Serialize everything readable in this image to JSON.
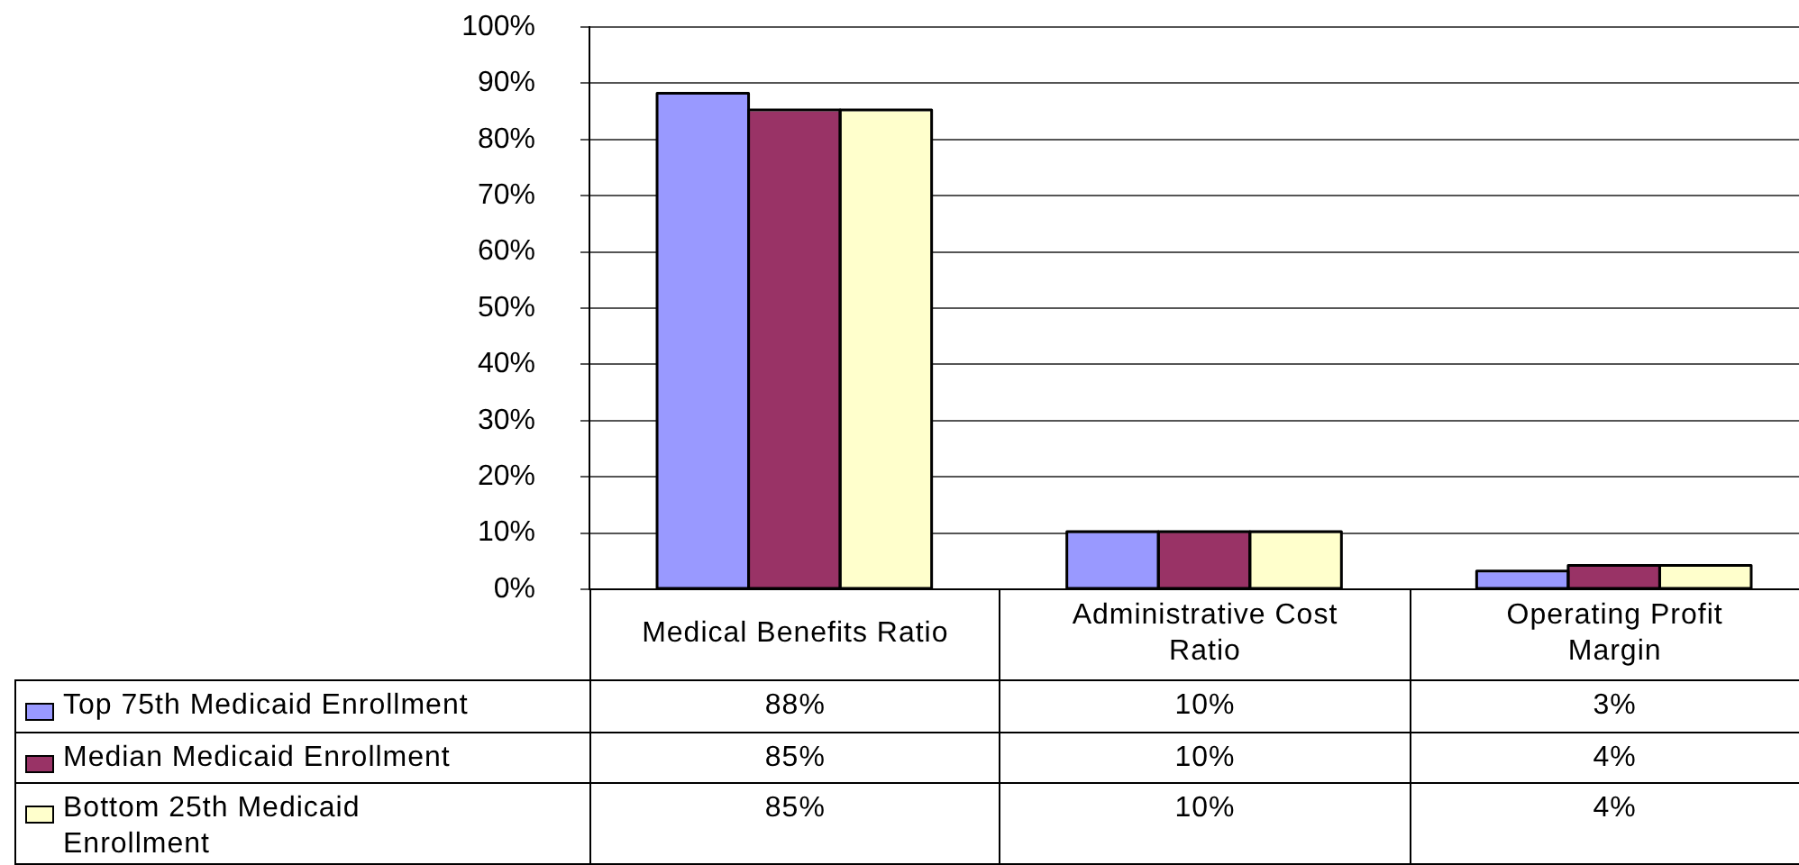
{
  "chart_data": {
    "type": "bar",
    "categories": [
      "Medical Benefits Ratio",
      "Administrative Cost Ratio",
      "Operating Profit Margin"
    ],
    "series": [
      {
        "name": "Top 75th Medicaid Enrollment",
        "color": "#9999ff",
        "values": [
          88,
          10,
          3
        ],
        "value_labels": [
          "88%",
          "10%",
          "3%"
        ]
      },
      {
        "name": "Median Medicaid Enrollment",
        "color": "#993366",
        "values": [
          85,
          10,
          4
        ],
        "value_labels": [
          "85%",
          "10%",
          "4%"
        ]
      },
      {
        "name": "Bottom 25th Medicaid Enrollment",
        "color": "#ffffcc",
        "values": [
          85,
          10,
          4
        ],
        "value_labels": [
          "85%",
          "10%",
          "4%"
        ]
      }
    ],
    "ylim": [
      0,
      100
    ],
    "yticks": [
      {
        "value": 0,
        "label": "0%"
      },
      {
        "value": 10,
        "label": "10%"
      },
      {
        "value": 20,
        "label": "20%"
      },
      {
        "value": 30,
        "label": "30%"
      },
      {
        "value": 40,
        "label": "40%"
      },
      {
        "value": 50,
        "label": "50%"
      },
      {
        "value": 60,
        "label": "60%"
      },
      {
        "value": 70,
        "label": "70%"
      },
      {
        "value": 80,
        "label": "80%"
      },
      {
        "value": 90,
        "label": "90%"
      },
      {
        "value": 100,
        "label": "100%"
      }
    ],
    "grid": "y",
    "legend": "bottom left"
  }
}
